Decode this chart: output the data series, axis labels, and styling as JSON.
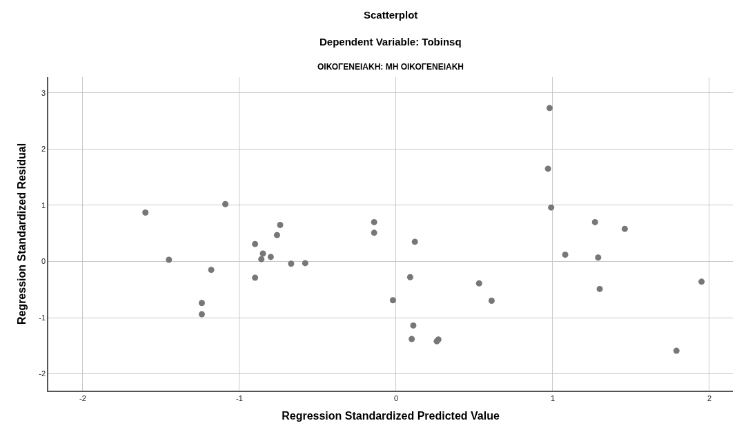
{
  "chart_data": {
    "type": "scatter",
    "title": "Scatterplot",
    "subtitle": "Dependent Variable: Tobinsq",
    "annotations": [
      "ΟΙΚΟΓΕΝΕΙΑΚΗ: ΜΗ ΟΙΚΟΓΕΝΕΙΑΚΗ"
    ],
    "xlabel": "Regression Standardized Predicted Value",
    "ylabel": "Regression Standardized Residual",
    "series": [
      {
        "color": "#777777",
        "x": [
          -1.6,
          -1.45,
          -1.24,
          -1.24,
          -1.18,
          -1.09,
          -0.9,
          -0.9,
          -0.85,
          -0.86,
          -0.8,
          -0.76,
          -0.74,
          -0.67,
          -0.58,
          -0.14,
          -0.14,
          -0.02,
          0.09,
          0.1,
          0.11,
          0.12,
          0.26,
          0.27,
          0.53,
          0.61,
          0.97,
          0.98,
          0.99,
          1.08,
          1.27,
          1.29,
          1.3,
          1.46,
          1.79,
          1.95
        ],
        "values": [
          0.87,
          0.03,
          -0.74,
          -0.94,
          -0.15,
          1.02,
          0.31,
          -0.29,
          0.14,
          0.04,
          0.08,
          0.47,
          0.65,
          -0.04,
          -0.03,
          0.7,
          0.51,
          -0.69,
          -0.28,
          -1.38,
          -1.14,
          0.35,
          -1.42,
          -1.39,
          -0.39,
          -0.7,
          1.65,
          2.73,
          0.96,
          0.12,
          0.7,
          0.07,
          -0.49,
          0.58,
          -1.59,
          -0.36
        ]
      }
    ],
    "xlim": [
      -2.22,
      2.15
    ],
    "ylim": [
      -2.3,
      3.28
    ],
    "xticks": [
      -2,
      -1,
      0,
      1,
      2
    ],
    "yticks": [
      -2,
      -1,
      0,
      1,
      2,
      3
    ],
    "grid": true,
    "marker": "circle"
  }
}
